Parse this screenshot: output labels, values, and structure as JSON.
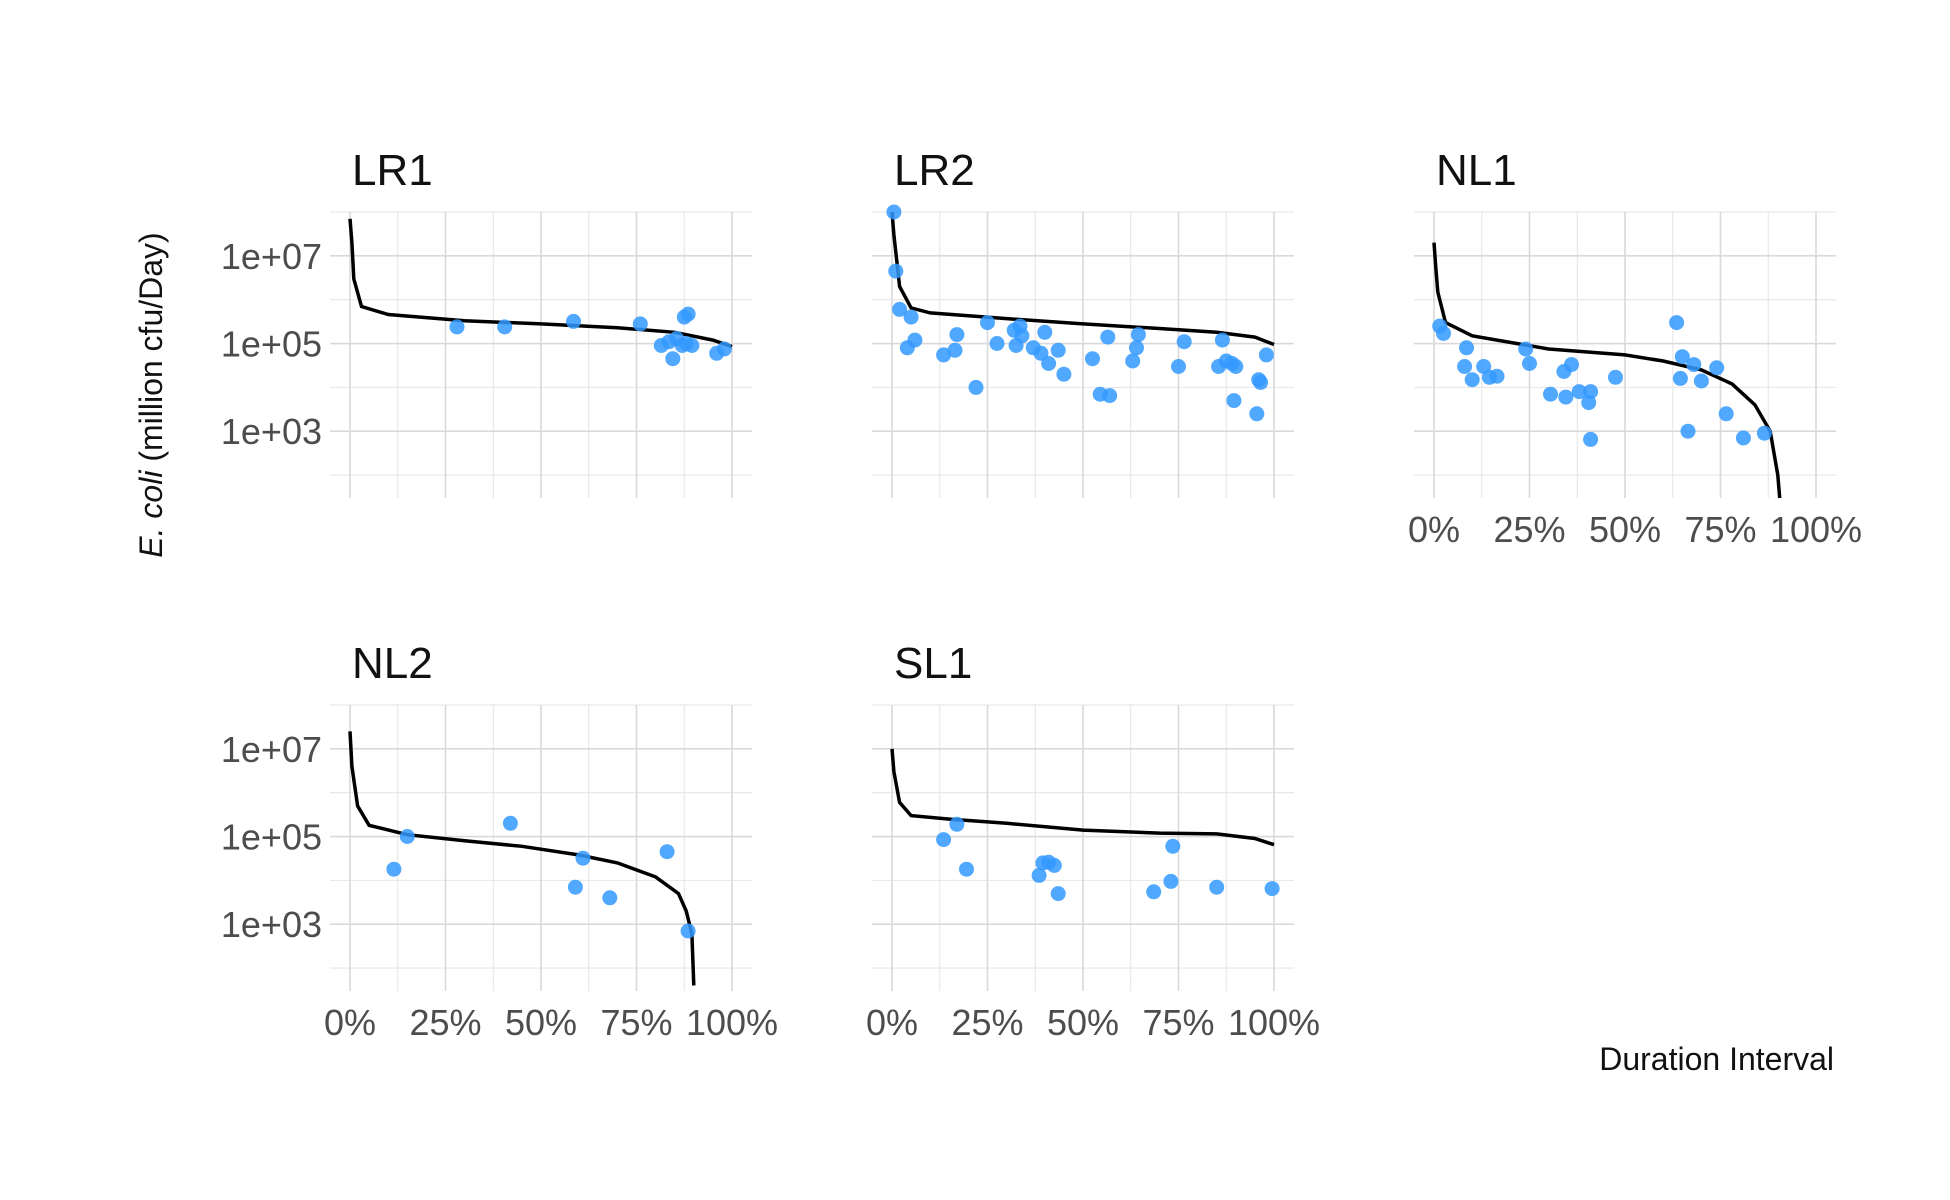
{
  "chart_data": {
    "type": "scatter",
    "facets": [
      "LR1",
      "LR2",
      "NL1",
      "NL2",
      "SL1"
    ],
    "xlabel": "Duration Interval",
    "ylabel_italic": "E. coli",
    "ylabel_rest": " (million cfu/Day)",
    "x_scale": "percent",
    "xlim": [
      0,
      1
    ],
    "y_scale": "log10",
    "ylim": [
      30,
      100000000
    ],
    "x_ticks": [
      0,
      0.25,
      0.5,
      0.75,
      1.0
    ],
    "x_tick_labels": [
      "0%",
      "25%",
      "50%",
      "75%",
      "100%"
    ],
    "y_ticks": [
      1000,
      100000,
      10000000
    ],
    "y_tick_labels": [
      "1e+03",
      "1e+05",
      "1e+07"
    ],
    "grid": true,
    "point_color": "#3399ff",
    "line_color": "#000000",
    "panels": [
      {
        "name": "LR1",
        "curve": [
          [
            0.0,
            70000000
          ],
          [
            0.005,
            20000000
          ],
          [
            0.01,
            3000000
          ],
          [
            0.03,
            700000
          ],
          [
            0.1,
            460000
          ],
          [
            0.3,
            330000
          ],
          [
            0.5,
            280000
          ],
          [
            0.7,
            230000
          ],
          [
            0.85,
            180000
          ],
          [
            0.95,
            120000
          ],
          [
            1.0,
            85000
          ]
        ],
        "points": [
          [
            0.28,
            240000
          ],
          [
            0.405,
            240000
          ],
          [
            0.585,
            320000
          ],
          [
            0.76,
            280000
          ],
          [
            0.815,
            90000
          ],
          [
            0.835,
            110000
          ],
          [
            0.845,
            45000
          ],
          [
            0.855,
            130000
          ],
          [
            0.87,
            90000
          ],
          [
            0.875,
            400000
          ],
          [
            0.885,
            470000
          ],
          [
            0.88,
            100000
          ],
          [
            0.895,
            90000
          ],
          [
            0.96,
            60000
          ],
          [
            0.98,
            75000
          ]
        ]
      },
      {
        "name": "LR2",
        "curve": [
          [
            0.0,
            100000000
          ],
          [
            0.005,
            30000000
          ],
          [
            0.02,
            2000000
          ],
          [
            0.05,
            650000
          ],
          [
            0.1,
            500000
          ],
          [
            0.3,
            370000
          ],
          [
            0.5,
            280000
          ],
          [
            0.7,
            220000
          ],
          [
            0.85,
            180000
          ],
          [
            0.95,
            140000
          ],
          [
            1.0,
            95000
          ]
        ],
        "points": [
          [
            0.005,
            100000000
          ],
          [
            0.01,
            4500000
          ],
          [
            0.02,
            600000
          ],
          [
            0.04,
            80000
          ],
          [
            0.05,
            400000
          ],
          [
            0.06,
            120000
          ],
          [
            0.135,
            55000
          ],
          [
            0.165,
            70000
          ],
          [
            0.17,
            160000
          ],
          [
            0.22,
            10000
          ],
          [
            0.25,
            300000
          ],
          [
            0.275,
            100000
          ],
          [
            0.32,
            200000
          ],
          [
            0.325,
            90000
          ],
          [
            0.335,
            250000
          ],
          [
            0.34,
            150000
          ],
          [
            0.37,
            80000
          ],
          [
            0.39,
            60000
          ],
          [
            0.4,
            180000
          ],
          [
            0.41,
            35000
          ],
          [
            0.435,
            70000
          ],
          [
            0.45,
            20000
          ],
          [
            0.525,
            45000
          ],
          [
            0.545,
            7000
          ],
          [
            0.565,
            140000
          ],
          [
            0.57,
            6500
          ],
          [
            0.63,
            40000
          ],
          [
            0.64,
            80000
          ],
          [
            0.645,
            160000
          ],
          [
            0.75,
            30000
          ],
          [
            0.765,
            110000
          ],
          [
            0.855,
            30000
          ],
          [
            0.865,
            120000
          ],
          [
            0.875,
            40000
          ],
          [
            0.89,
            35000
          ],
          [
            0.895,
            5000
          ],
          [
            0.9,
            30000
          ],
          [
            0.955,
            2500
          ],
          [
            0.96,
            15000
          ],
          [
            0.965,
            13000
          ],
          [
            0.98,
            55000
          ]
        ]
      },
      {
        "name": "NL1",
        "curve": [
          [
            0.0,
            20000000
          ],
          [
            0.005,
            5000000
          ],
          [
            0.01,
            1500000
          ],
          [
            0.03,
            300000
          ],
          [
            0.1,
            150000
          ],
          [
            0.3,
            75000
          ],
          [
            0.5,
            55000
          ],
          [
            0.6,
            40000
          ],
          [
            0.7,
            25000
          ],
          [
            0.78,
            12000
          ],
          [
            0.84,
            4000
          ],
          [
            0.88,
            1000
          ],
          [
            0.9,
            100
          ],
          [
            0.905,
            30
          ]
        ],
        "points": [
          [
            0.015,
            250000
          ],
          [
            0.025,
            170000
          ],
          [
            0.08,
            30000
          ],
          [
            0.085,
            80000
          ],
          [
            0.1,
            15000
          ],
          [
            0.13,
            30000
          ],
          [
            0.145,
            17000
          ],
          [
            0.165,
            18000
          ],
          [
            0.24,
            75000
          ],
          [
            0.25,
            35000
          ],
          [
            0.305,
            7000
          ],
          [
            0.34,
            23000
          ],
          [
            0.345,
            6000
          ],
          [
            0.36,
            33000
          ],
          [
            0.38,
            8000
          ],
          [
            0.405,
            4500
          ],
          [
            0.41,
            8000
          ],
          [
            0.41,
            650
          ],
          [
            0.475,
            17000
          ],
          [
            0.635,
            300000
          ],
          [
            0.645,
            16000
          ],
          [
            0.65,
            50000
          ],
          [
            0.665,
            1000
          ],
          [
            0.68,
            33000
          ],
          [
            0.7,
            14000
          ],
          [
            0.74,
            28000
          ],
          [
            0.765,
            2500
          ],
          [
            0.81,
            700
          ],
          [
            0.865,
            900
          ]
        ]
      },
      {
        "name": "NL2",
        "curve": [
          [
            0.0,
            25000000
          ],
          [
            0.005,
            4000000
          ],
          [
            0.02,
            500000
          ],
          [
            0.05,
            180000
          ],
          [
            0.15,
            110000
          ],
          [
            0.3,
            80000
          ],
          [
            0.45,
            60000
          ],
          [
            0.6,
            38000
          ],
          [
            0.7,
            25000
          ],
          [
            0.8,
            12000
          ],
          [
            0.86,
            5000
          ],
          [
            0.88,
            2000
          ],
          [
            0.895,
            600
          ],
          [
            0.9,
            40
          ]
        ],
        "points": [
          [
            0.115,
            18000
          ],
          [
            0.15,
            100000
          ],
          [
            0.42,
            200000
          ],
          [
            0.59,
            7000
          ],
          [
            0.61,
            32000
          ],
          [
            0.68,
            4000
          ],
          [
            0.83,
            45000
          ],
          [
            0.885,
            700
          ]
        ]
      },
      {
        "name": "SL1",
        "curve": [
          [
            0.0,
            10000000
          ],
          [
            0.005,
            3000000
          ],
          [
            0.02,
            600000
          ],
          [
            0.05,
            300000
          ],
          [
            0.15,
            250000
          ],
          [
            0.3,
            200000
          ],
          [
            0.5,
            140000
          ],
          [
            0.7,
            120000
          ],
          [
            0.85,
            115000
          ],
          [
            0.95,
            90000
          ],
          [
            1.0,
            65000
          ]
        ],
        "points": [
          [
            0.135,
            85000
          ],
          [
            0.17,
            190000
          ],
          [
            0.195,
            18000
          ],
          [
            0.385,
            13000
          ],
          [
            0.395,
            25000
          ],
          [
            0.41,
            26000
          ],
          [
            0.425,
            22000
          ],
          [
            0.435,
            5000
          ],
          [
            0.685,
            5500
          ],
          [
            0.73,
            9500
          ],
          [
            0.735,
            60000
          ],
          [
            0.85,
            7000
          ],
          [
            0.995,
            6500
          ]
        ]
      }
    ]
  }
}
